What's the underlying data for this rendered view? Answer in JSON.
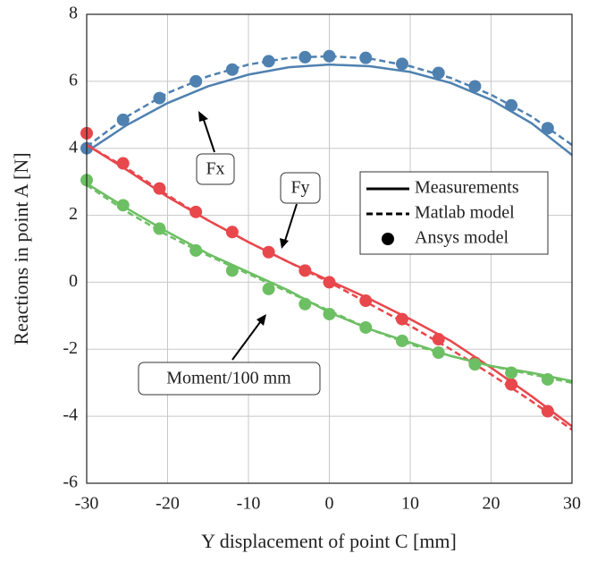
{
  "chart_data": {
    "type": "line",
    "xlabel": "Y displacement of point C [mm]",
    "ylabel": "Reactions in point A [N]",
    "xlim": [
      -30,
      30
    ],
    "xticks": [
      -30,
      -20,
      -10,
      0,
      10,
      20,
      30
    ],
    "ylim": [
      -6,
      8
    ],
    "yticks": [
      -6,
      -4,
      -2,
      0,
      2,
      4,
      6,
      8
    ],
    "grid": true,
    "legend": [
      "Measurements",
      "Matlab model",
      "Ansys model"
    ],
    "legend_position": "right",
    "x": [
      -30,
      -25,
      -20,
      -15,
      -10,
      -5,
      0,
      5,
      10,
      15,
      20,
      25,
      30
    ],
    "ansys_x": [
      -30,
      -25.5,
      -21,
      -16.5,
      -12,
      -7.5,
      -3,
      0,
      4.5,
      9,
      13.5,
      18,
      22.5,
      27
    ],
    "series": [
      {
        "name": "Fx",
        "color": "#4f81b0",
        "measurements": [
          3.9,
          4.7,
          5.35,
          5.85,
          6.2,
          6.42,
          6.5,
          6.45,
          6.28,
          5.95,
          5.45,
          4.75,
          3.8
        ],
        "matlab": [
          4.05,
          4.95,
          5.65,
          6.15,
          6.5,
          6.7,
          6.75,
          6.68,
          6.45,
          6.1,
          5.6,
          4.95,
          4.1
        ],
        "ansys": [
          4.0,
          4.85,
          5.5,
          6.0,
          6.35,
          6.6,
          6.72,
          6.75,
          6.7,
          6.52,
          6.25,
          5.85,
          5.28,
          4.6
        ]
      },
      {
        "name": "Fy",
        "color": "#e8474c",
        "measurements": [
          4.1,
          3.35,
          2.55,
          1.85,
          1.2,
          0.6,
          0.05,
          -0.5,
          -1.1,
          -1.75,
          -2.55,
          -3.4,
          -4.3
        ],
        "matlab": [
          4.1,
          3.4,
          2.6,
          1.85,
          1.2,
          0.6,
          0,
          -0.65,
          -1.3,
          -2.0,
          -2.75,
          -3.55,
          -4.4
        ],
        "ansys": [
          4.45,
          3.55,
          2.8,
          2.1,
          1.5,
          0.9,
          0.35,
          0,
          -0.55,
          -1.1,
          -1.7,
          -2.4,
          -3.05,
          -3.85
        ]
      },
      {
        "name": "Moment/100 mm",
        "color": "#6dbf63",
        "measurements": [
          2.95,
          2.2,
          1.5,
          0.85,
          0.3,
          -0.25,
          -0.9,
          -1.4,
          -1.8,
          -2.2,
          -2.5,
          -2.7,
          -2.95
        ],
        "matlab": [
          2.9,
          2.1,
          1.4,
          0.8,
          0.25,
          -0.3,
          -0.85,
          -1.4,
          -1.85,
          -2.2,
          -2.5,
          -2.75,
          -3.0
        ],
        "ansys": [
          3.05,
          2.3,
          1.6,
          0.95,
          0.35,
          -0.2,
          -0.65,
          -0.95,
          -1.35,
          -1.75,
          -2.1,
          -2.45,
          -2.7,
          -2.9
        ]
      }
    ]
  }
}
